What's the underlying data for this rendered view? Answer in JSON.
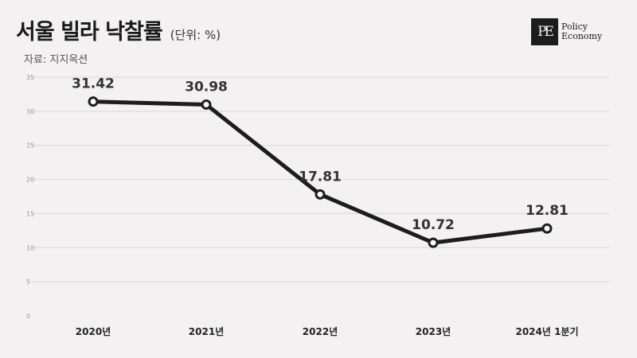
{
  "header": {
    "title": "서울 빌라 낙찰률",
    "unit": "(단위: %)",
    "source": "자료: 지지옥션"
  },
  "logo": {
    "mark": "PE",
    "line1": "Policy",
    "line2": "Economy"
  },
  "chart_data": {
    "type": "line",
    "title": "서울 빌라 낙찰률",
    "unit": "(단위: %)",
    "categories": [
      "2020년",
      "2021년",
      "2022년",
      "2023년",
      "2024년 1분기"
    ],
    "series": [
      {
        "values": [
          31.42,
          30.98,
          17.81,
          10.72,
          12.81
        ]
      }
    ],
    "data_labels": [
      "31.42",
      "30.98",
      "17.81",
      "10.72",
      "12.81"
    ],
    "yticks": [
      0,
      5,
      10,
      15,
      20,
      25,
      30,
      35
    ],
    "ylim": [
      0,
      35
    ],
    "grid": true,
    "legend": "none",
    "colors": {
      "line": "#1d1d1d",
      "marker_fill": "#ffffff",
      "grid": "#d8d6d6",
      "background": "#f3f1f1"
    }
  }
}
